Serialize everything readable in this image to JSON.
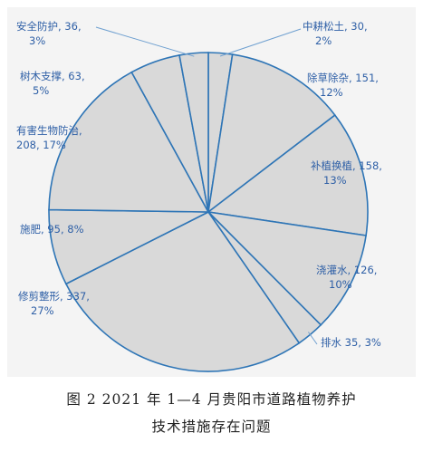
{
  "chart_data": {
    "type": "pie",
    "slices": [
      {
        "label": "中耕松土",
        "value": 30,
        "percent": "2%",
        "text1": "中耕松土, 30,",
        "text2": "2%"
      },
      {
        "label": "除草除杂",
        "value": 151,
        "percent": "12%",
        "text1": "除草除杂, 151,",
        "text2": "12%"
      },
      {
        "label": "补植换植",
        "value": 158,
        "percent": "13%",
        "text1": "补植换植, 158,",
        "text2": "13%"
      },
      {
        "label": "浇灌水",
        "value": 126,
        "percent": "10%",
        "text1": "浇灌水, 126,",
        "text2": "10%"
      },
      {
        "label": "排水",
        "value": 35,
        "percent": "3%",
        "text1": "排水 35, 3%",
        "text2": ""
      },
      {
        "label": "修剪整形",
        "value": 337,
        "percent": "27%",
        "text1": "修剪整形, 337,",
        "text2": "27%"
      },
      {
        "label": "施肥",
        "value": 95,
        "percent": "8%",
        "text1": "施肥, 95, 8%",
        "text2": ""
      },
      {
        "label": "有害生物防治",
        "value": 208,
        "percent": "17%",
        "text1": "有害生物防治,",
        "text2": "208, 17%"
      },
      {
        "label": "树木支撑",
        "value": 63,
        "percent": "5%",
        "text1": "树木支撑, 63,",
        "text2": "5%"
      },
      {
        "label": "安全防护",
        "value": 36,
        "percent": "3%",
        "text1": "安全防护, 36,",
        "text2": "3%"
      }
    ],
    "colors": {
      "fill": "#d9d9d9",
      "stroke": "#2e75b6",
      "label": "#2e5fa6",
      "background": "#f4f4f4"
    }
  },
  "caption": {
    "line1": "图 2  2021 年 1—4 月贵阳市道路植物养护",
    "line2": "技术措施存在问题"
  }
}
